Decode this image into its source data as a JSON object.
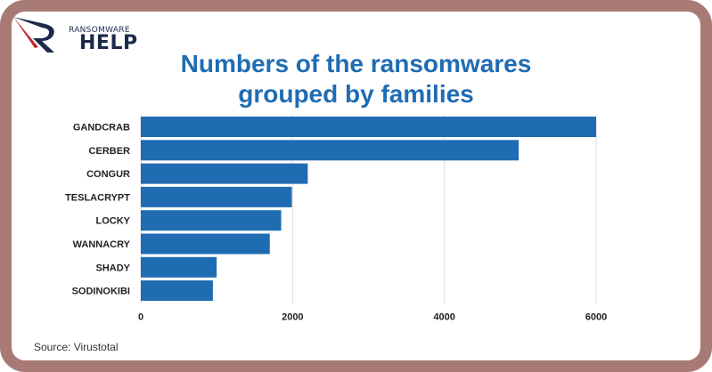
{
  "logo": {
    "top_text": "RANSOMWARE",
    "bottom_text": "HELP"
  },
  "title_lines": [
    "Numbers of the ransomwares",
    "grouped by families"
  ],
  "source": "Source: Virustotal",
  "colors": {
    "bar": "#1f6cb3",
    "title": "#1f6cb3",
    "frame": "#a87a76"
  },
  "chart_data": {
    "type": "bar",
    "orientation": "horizontal",
    "title": "Numbers of the ransomwares grouped by families",
    "categories": [
      "GANDCRAB",
      "CERBER",
      "CONGUR",
      "TESLACRYPT",
      "LOCKY",
      "WANNACRY",
      "SHADY",
      "SODINOKIBI"
    ],
    "values": [
      6000,
      4980,
      2200,
      1990,
      1850,
      1700,
      1000,
      950
    ],
    "xticks": [
      0,
      2000,
      4000,
      6000
    ],
    "xlim": [
      0,
      6000
    ],
    "grid": true,
    "legend": "none"
  }
}
